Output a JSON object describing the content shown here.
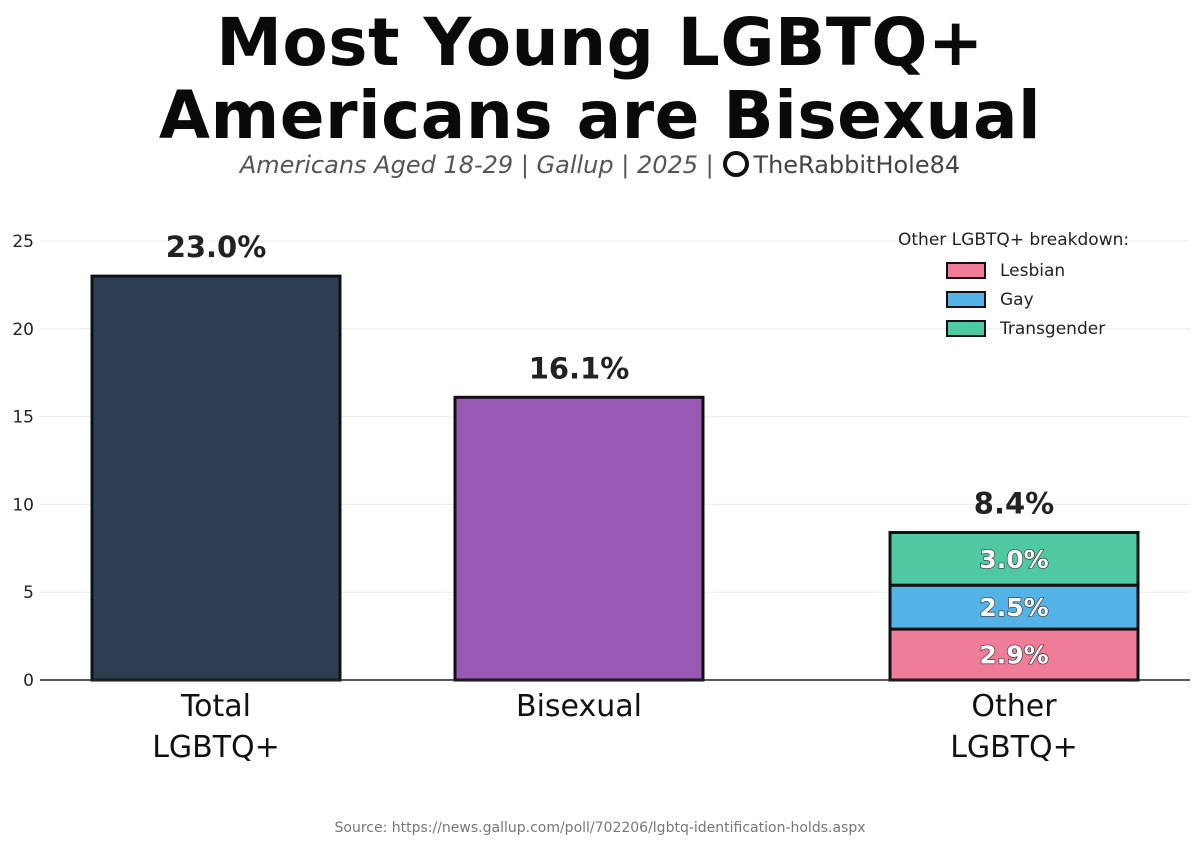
{
  "header": {
    "title_line1": "Most Young LGBTQ+",
    "title_line2": "Americans are Bisexual",
    "subtitle": "Americans Aged 18-29 | Gallup | 2025 |",
    "handle": "TheRabbitHole84"
  },
  "footer": {
    "source": "Source: https://news.gallup.com/poll/702206/lgbtq-identification-holds.aspx"
  },
  "colors": {
    "total": "#2c3e50",
    "bisexual": "#9b59b6",
    "lesbian": "#ef7c99",
    "gay": "#54b3e6",
    "transgender": "#4fc9a1"
  },
  "chart_data": {
    "type": "bar",
    "ylim": [
      0,
      25
    ],
    "yticks": [
      0,
      5,
      10,
      15,
      20,
      25
    ],
    "categories": [
      {
        "line1": "Total",
        "line2": "LGBTQ+"
      },
      {
        "line1": "Bisexual",
        "line2": ""
      },
      {
        "line1": "Other",
        "line2": "LGBTQ+"
      }
    ],
    "bars": [
      {
        "value": 23.0,
        "label": "23.0%",
        "color": "#2c3e50"
      },
      {
        "value": 16.1,
        "label": "16.1%",
        "color": "#9b59b6"
      },
      {
        "value": 8.4,
        "label": "8.4%",
        "stack": [
          {
            "name": "Lesbian",
            "value": 2.9,
            "label": "2.9%",
            "color": "#ef7c99"
          },
          {
            "name": "Gay",
            "value": 2.5,
            "label": "2.5%",
            "color": "#54b3e6"
          },
          {
            "name": "Transgender",
            "value": 3.0,
            "label": "3.0%",
            "color": "#4fc9a1"
          }
        ]
      }
    ],
    "legend": {
      "title": "Other LGBTQ+ breakdown:",
      "position": "top-right",
      "items": [
        {
          "name": "Lesbian",
          "color": "#ef7c99"
        },
        {
          "name": "Gay",
          "color": "#54b3e6"
        },
        {
          "name": "Transgender",
          "color": "#4fc9a1"
        }
      ]
    },
    "grid": true
  }
}
